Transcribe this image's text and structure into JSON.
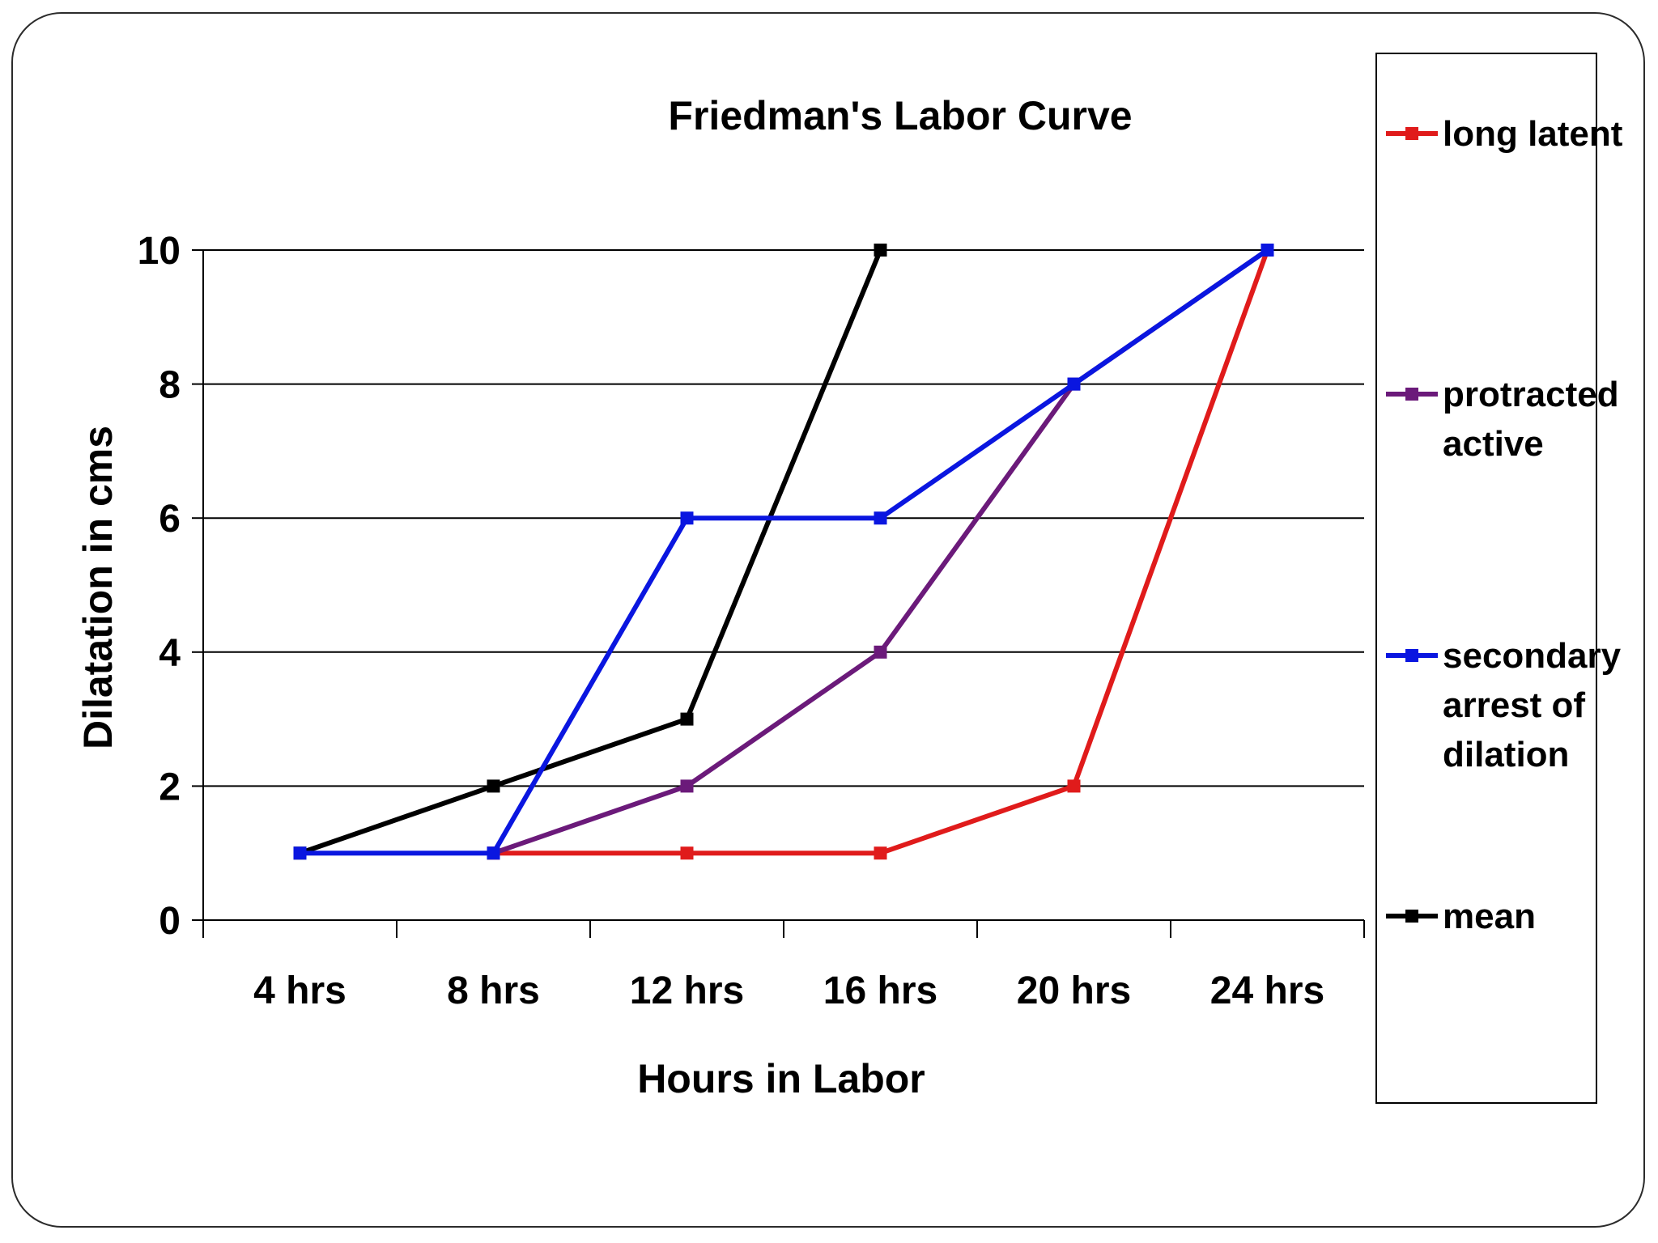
{
  "chart_data": {
    "type": "line",
    "title": "Friedman's Labor Curve",
    "xlabel": "Hours in Labor",
    "ylabel": "Dilatation in cms",
    "categories": [
      "4 hrs",
      "8 hrs",
      "12 hrs",
      "16 hrs",
      "20 hrs",
      "24 hrs"
    ],
    "ylim": [
      0,
      10
    ],
    "yticks": [
      "0",
      "2",
      "4",
      "6",
      "8",
      "10"
    ],
    "grid": true,
    "legend_position": "right",
    "series": [
      {
        "name": "long latent",
        "color": "#e01b1b",
        "values": [
          null,
          1,
          1,
          1,
          2,
          10
        ]
      },
      {
        "name": "protracted active",
        "color": "#6b1a7a",
        "values": [
          null,
          1,
          2,
          4,
          8,
          10
        ]
      },
      {
        "name": "secondary arrest of dilation",
        "color": "#0a16e0",
        "values": [
          1,
          1,
          6,
          6,
          8,
          10
        ]
      },
      {
        "name": "mean",
        "color": "#000000",
        "values": [
          1,
          2,
          3,
          10,
          null,
          null
        ]
      }
    ],
    "legend_lines": [
      [
        "long latent"
      ],
      [
        "protracted",
        "active"
      ],
      [
        "secondary",
        "arrest of",
        "dilation"
      ],
      [
        "mean"
      ]
    ]
  }
}
